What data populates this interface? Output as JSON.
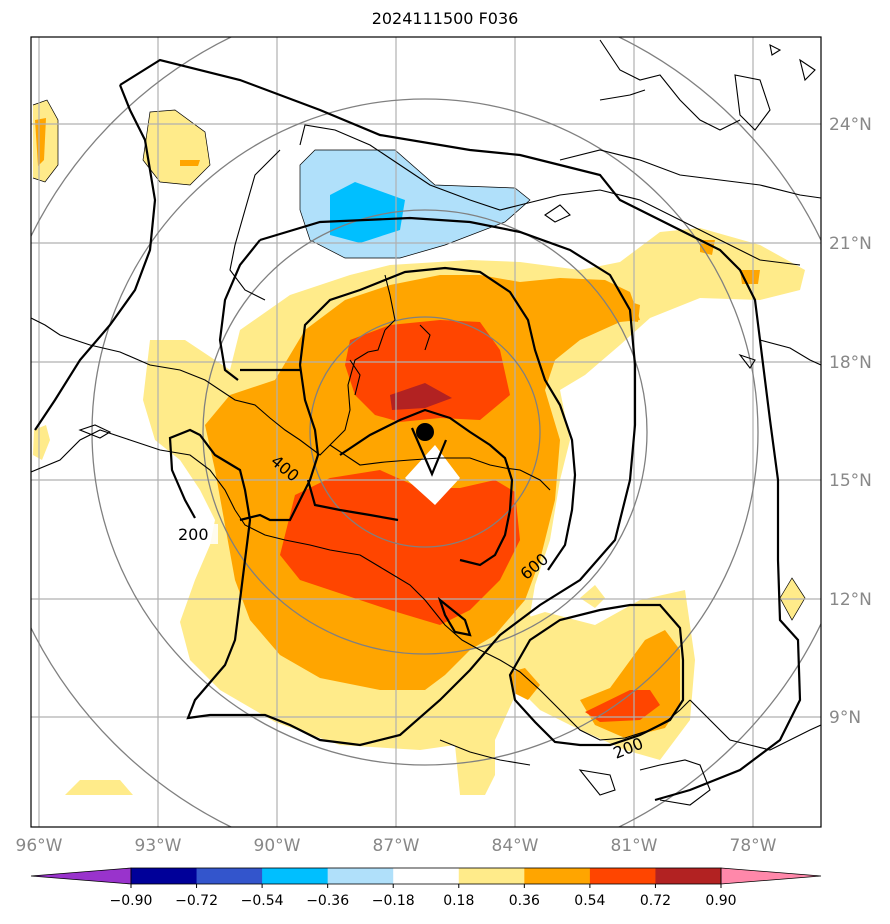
{
  "title": "2024111500 F036",
  "map": {
    "projection": "plate-carree",
    "lon_range": [
      -96.2,
      -76.3
    ],
    "lat_range": [
      7.0,
      26.0
    ],
    "storm_center": {
      "lon": -86.3,
      "lat": 16.2
    },
    "lon_ticks": [
      "96°W",
      "93°W",
      "90°W",
      "87°W",
      "84°W",
      "81°W",
      "78°W"
    ],
    "lat_ticks": [
      "24°N",
      "21°N",
      "18°N",
      "15°N",
      "12°N",
      "9°N"
    ],
    "contour_labels": [
      "200",
      "400",
      "600",
      "200"
    ]
  },
  "colorbar": {
    "tick_labels": [
      "−0.90",
      "−0.72",
      "−0.54",
      "−0.36",
      "−0.18",
      "0.18",
      "0.36",
      "0.54",
      "0.72",
      "0.90"
    ],
    "colors": [
      "#9933cc",
      "#000099",
      "#3355cc",
      "#00bfff",
      "#b0e0fa",
      "#ffffff",
      "#ffeb8a",
      "#ffa500",
      "#ff4500",
      "#b22222",
      "#ff88aa"
    ],
    "extend": "both"
  }
}
